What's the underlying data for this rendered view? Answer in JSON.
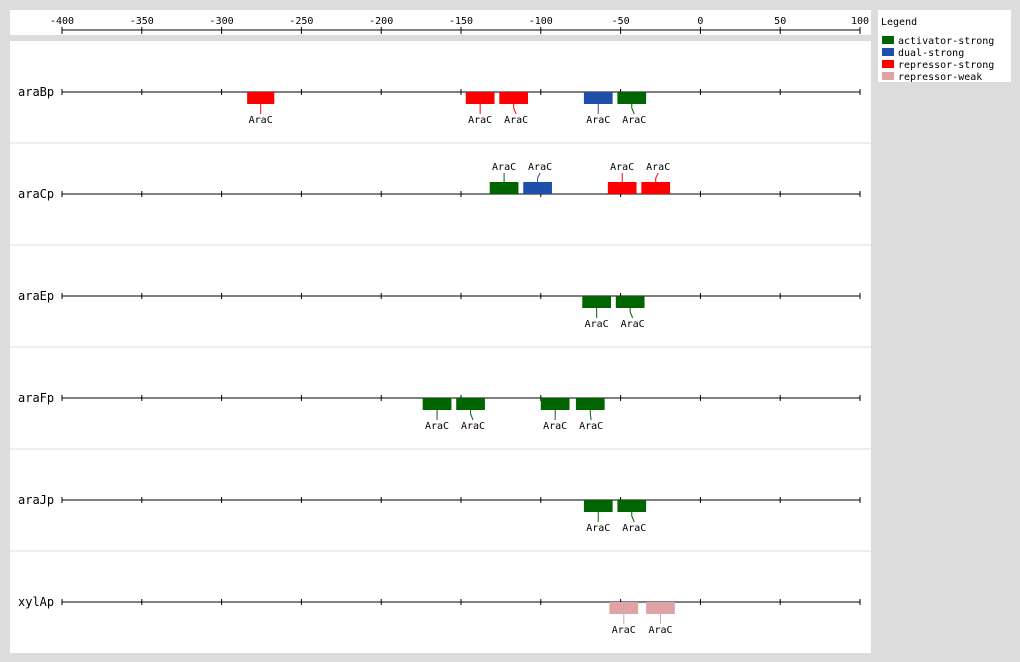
{
  "chart_data": {
    "type": "diagram",
    "axis": {
      "min": -400,
      "max": 100,
      "ticks": [
        -400,
        -350,
        -300,
        -250,
        -200,
        -150,
        -100,
        -50,
        0,
        50,
        100
      ]
    },
    "legend": {
      "title": "Legend",
      "items": [
        {
          "name": "activator-strong",
          "color": "#006400"
        },
        {
          "name": "dual-strong",
          "color": "#1f4fa8"
        },
        {
          "name": "repressor-strong",
          "color": "#ff0000"
        },
        {
          "name": "repressor-weak",
          "color": "#e0a3a3"
        }
      ]
    },
    "promoters": [
      {
        "name": "araBp",
        "sites": [
          {
            "start": -284,
            "end": -267,
            "type": "repressor-strong",
            "label": "AraC",
            "side": "below"
          },
          {
            "start": -147,
            "end": -129,
            "type": "repressor-strong",
            "label": "AraC",
            "side": "below"
          },
          {
            "start": -126,
            "end": -108,
            "type": "repressor-strong",
            "label": "AraC",
            "side": "below"
          },
          {
            "start": -73,
            "end": -55,
            "type": "dual-strong",
            "label": "AraC",
            "side": "below"
          },
          {
            "start": -52,
            "end": -34,
            "type": "activator-strong",
            "label": "AraC",
            "side": "below"
          }
        ]
      },
      {
        "name": "araCp",
        "sites": [
          {
            "start": -132,
            "end": -114,
            "type": "activator-strong",
            "label": "AraC",
            "side": "above"
          },
          {
            "start": -111,
            "end": -93,
            "type": "dual-strong",
            "label": "AraC",
            "side": "above"
          },
          {
            "start": -58,
            "end": -40,
            "type": "repressor-strong",
            "label": "AraC",
            "side": "above"
          },
          {
            "start": -37,
            "end": -19,
            "type": "repressor-strong",
            "label": "AraC",
            "side": "above"
          }
        ]
      },
      {
        "name": "araEp",
        "sites": [
          {
            "start": -74,
            "end": -56,
            "type": "activator-strong",
            "label": "AraC",
            "side": "below"
          },
          {
            "start": -53,
            "end": -35,
            "type": "activator-strong",
            "label": "AraC",
            "side": "below"
          }
        ]
      },
      {
        "name": "araFp",
        "sites": [
          {
            "start": -174,
            "end": -156,
            "type": "activator-strong",
            "label": "AraC",
            "side": "below"
          },
          {
            "start": -153,
            "end": -135,
            "type": "activator-strong",
            "label": "AraC",
            "side": "below"
          },
          {
            "start": -100,
            "end": -82,
            "type": "activator-strong",
            "label": "AraC",
            "side": "below"
          },
          {
            "start": -78,
            "end": -60,
            "type": "activator-strong",
            "label": "AraC",
            "side": "below"
          }
        ]
      },
      {
        "name": "araJp",
        "sites": [
          {
            "start": -73,
            "end": -55,
            "type": "activator-strong",
            "label": "AraC",
            "side": "below"
          },
          {
            "start": -52,
            "end": -34,
            "type": "activator-strong",
            "label": "AraC",
            "side": "below"
          }
        ]
      },
      {
        "name": "xylAp",
        "sites": [
          {
            "start": -57,
            "end": -39,
            "type": "repressor-weak",
            "label": "AraC",
            "side": "below"
          },
          {
            "start": -34,
            "end": -16,
            "type": "repressor-weak",
            "label": "AraC",
            "side": "below"
          }
        ]
      }
    ]
  }
}
